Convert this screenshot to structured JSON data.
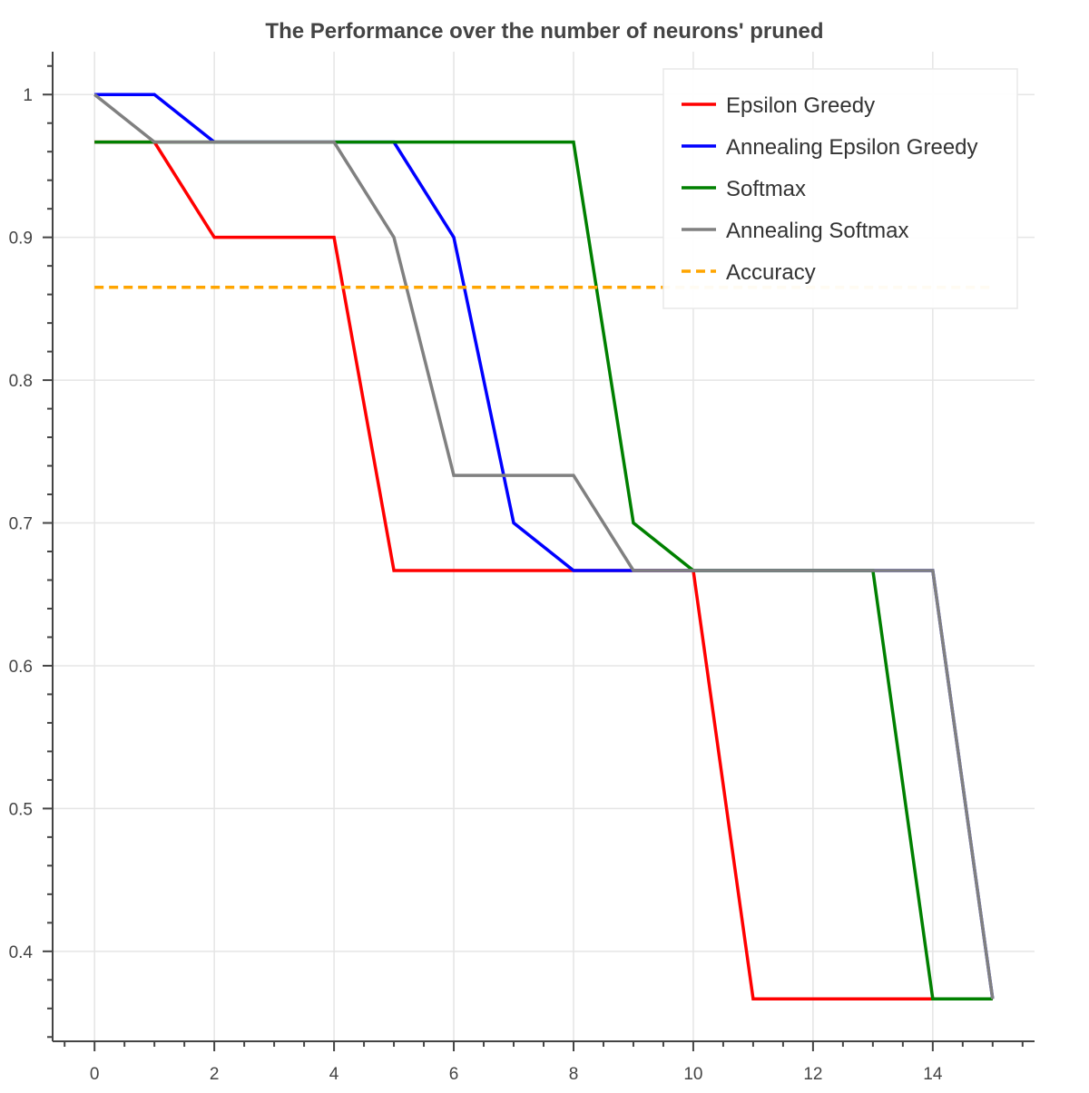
{
  "chart_data": {
    "type": "line",
    "title": "The Performance over the number of neurons' pruned",
    "xlabel": "",
    "ylabel": "",
    "x": [
      0,
      1,
      2,
      3,
      4,
      5,
      6,
      7,
      8,
      9,
      10,
      11,
      12,
      13,
      14,
      15
    ],
    "xlim": [
      -0.7,
      15.7
    ],
    "ylim": [
      0.337,
      1.03
    ],
    "x_ticks": [
      "0",
      "2",
      "4",
      "6",
      "8",
      "10",
      "12",
      "14"
    ],
    "y_ticks": [
      "0.4",
      "0.5",
      "0.6",
      "0.7",
      "0.8",
      "0.9",
      "1"
    ],
    "grid": true,
    "legend_position": "top-right",
    "series": [
      {
        "name": "Epsilon Greedy",
        "color": "#ff0000",
        "dash": "solid",
        "values": [
          0.9667,
          0.9667,
          0.9,
          0.9,
          0.9,
          0.6667,
          0.6667,
          0.6667,
          0.6667,
          0.6667,
          0.6667,
          0.3667,
          0.3667,
          0.3667,
          0.3667,
          0.3667
        ]
      },
      {
        "name": "Annealing Epsilon Greedy",
        "color": "#0000ff",
        "dash": "solid",
        "values": [
          1.0,
          1.0,
          0.9667,
          0.9667,
          0.9667,
          0.9667,
          0.9,
          0.7,
          0.6667,
          0.6667,
          0.6667,
          0.6667,
          0.6667,
          0.6667,
          0.6667,
          0.3667
        ]
      },
      {
        "name": "Softmax",
        "color": "#008000",
        "dash": "solid",
        "values": [
          0.9667,
          0.9667,
          0.9667,
          0.9667,
          0.9667,
          0.9667,
          0.9667,
          0.9667,
          0.9667,
          0.7,
          0.6667,
          0.6667,
          0.6667,
          0.6667,
          0.3667,
          0.3667
        ]
      },
      {
        "name": "Annealing Softmax",
        "color": "#808080",
        "dash": "solid",
        "values": [
          1.0,
          0.9667,
          0.9667,
          0.9667,
          0.9667,
          0.9,
          0.7333,
          0.7333,
          0.7333,
          0.6667,
          0.6667,
          0.6667,
          0.6667,
          0.6667,
          0.6667,
          0.3667
        ]
      },
      {
        "name": "Accuracy",
        "color": "#ffa500",
        "dash": "dashed",
        "values": [
          0.865,
          0.865,
          0.865,
          0.865,
          0.865,
          0.865,
          0.865,
          0.865,
          0.865,
          0.865,
          0.865,
          0.865,
          0.865,
          0.865,
          0.865,
          0.865
        ]
      }
    ]
  }
}
